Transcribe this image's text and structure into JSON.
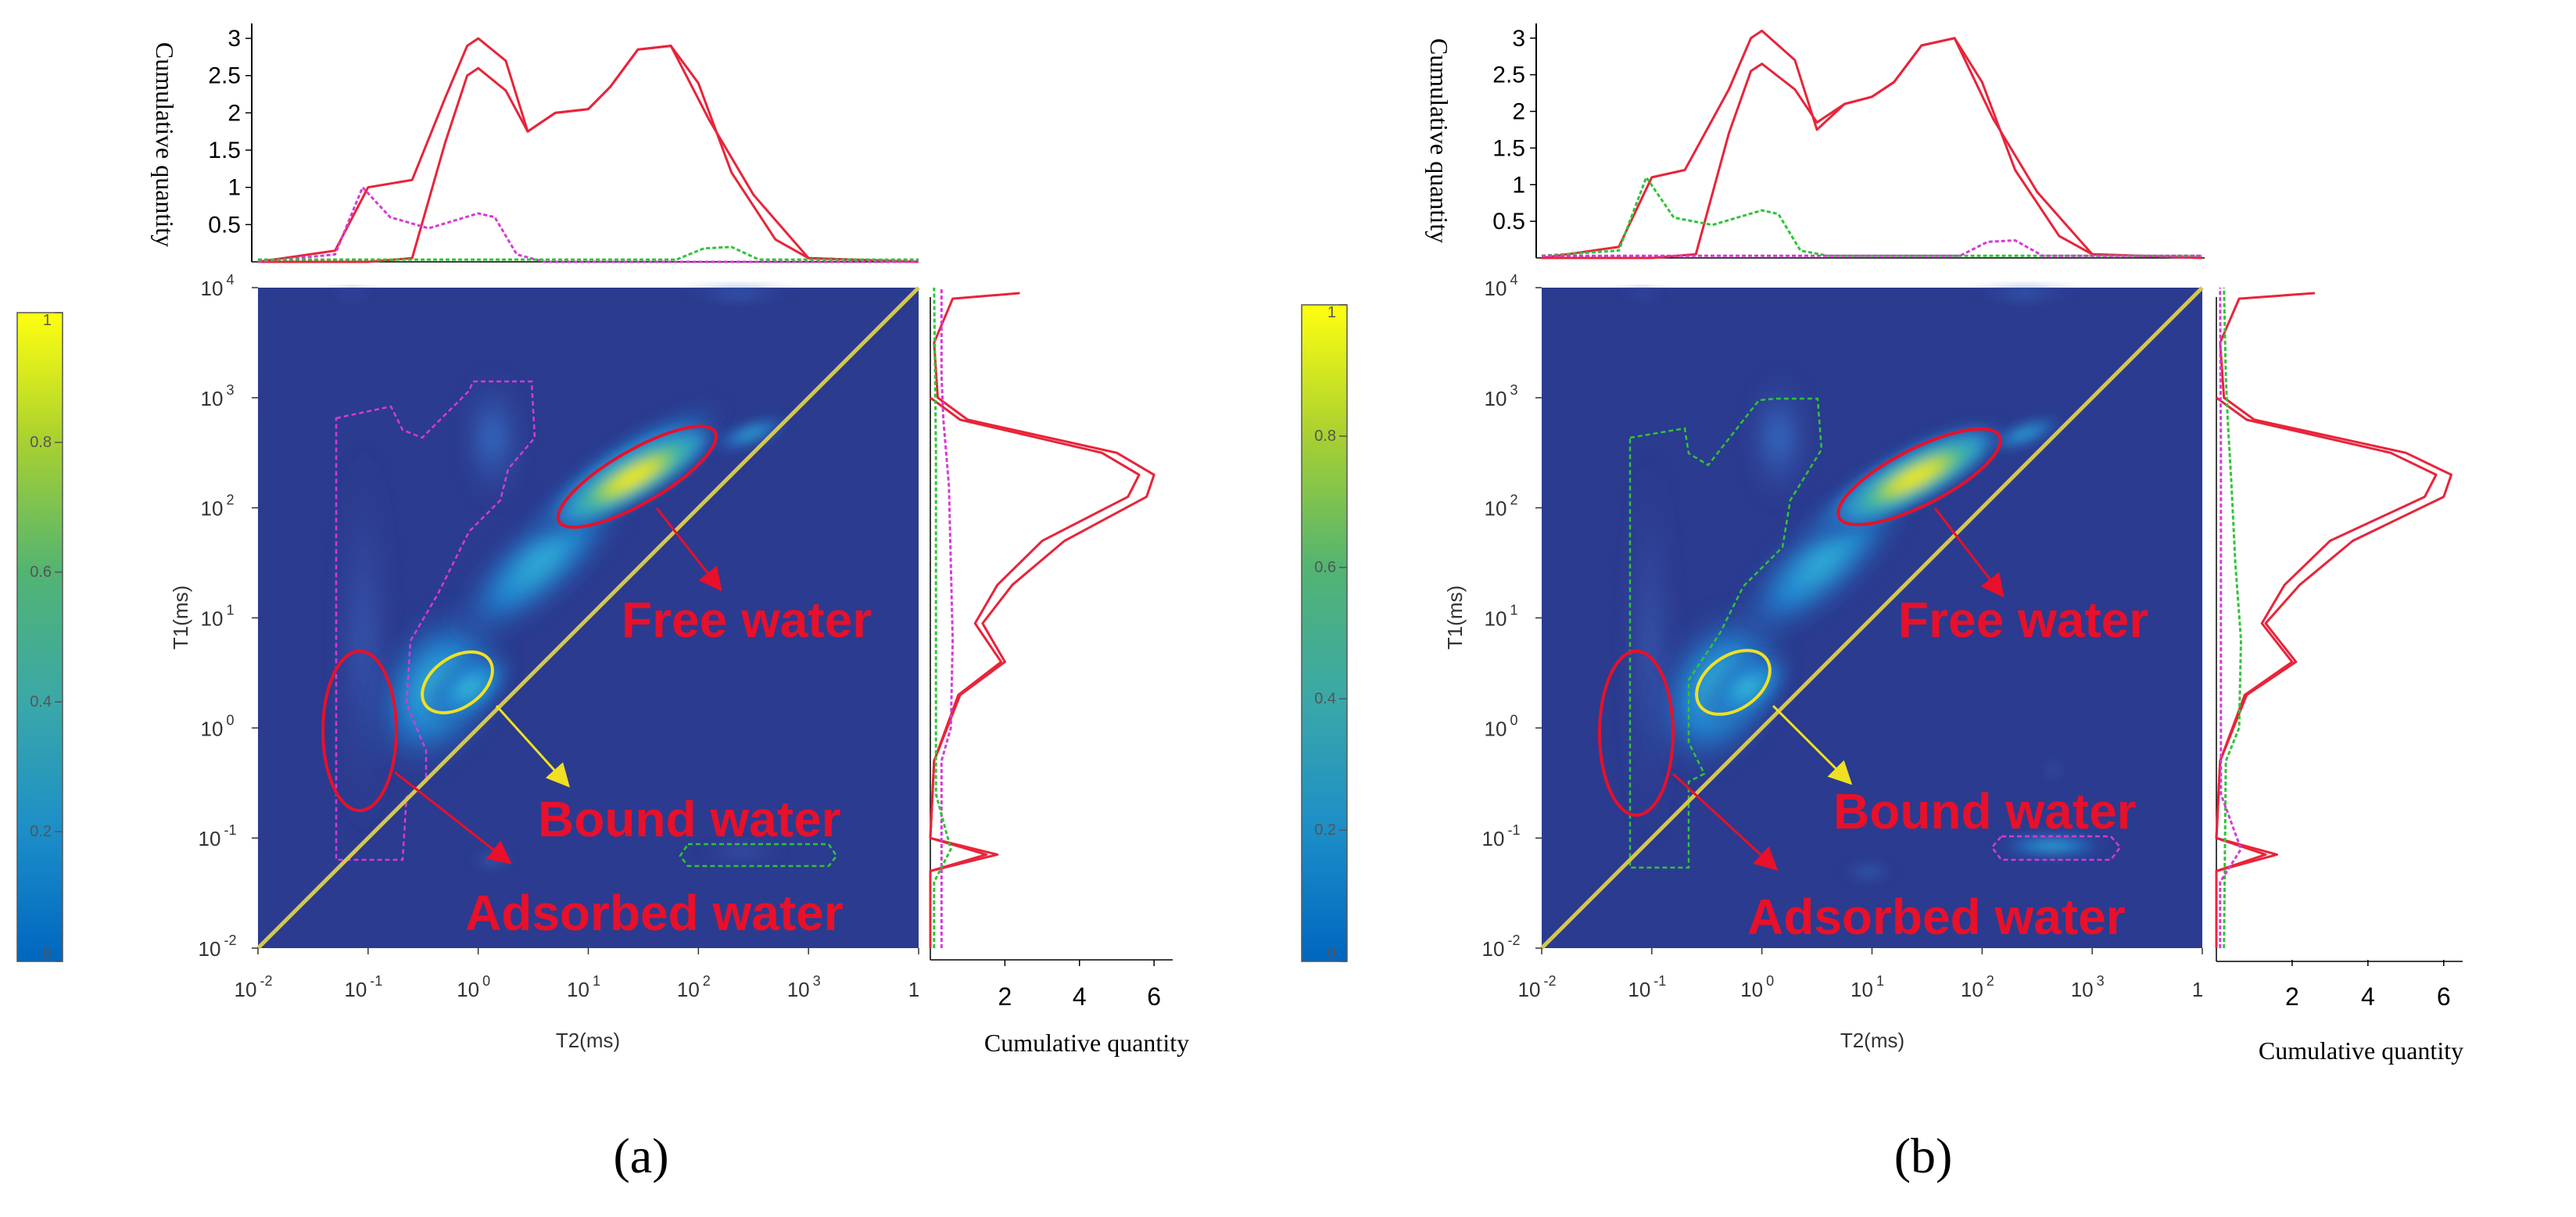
{
  "colors": {
    "map_bg": "#2b3b8f",
    "curve_red": "#e8243a",
    "curve_magenta": "#d63ad6",
    "curve_green": "#2fc437",
    "annot_red": "#e8102a",
    "annot_yellow": "#f0e024",
    "diagonal": "#d7c74a",
    "colorbar": [
      "#0066c0",
      "#1c8ec8",
      "#3aa8a8",
      "#52b472",
      "#8ec63a",
      "#d6df10",
      "#ffff00"
    ]
  },
  "chart_data": [
    {
      "type": "heatmap",
      "panel_label": "(a)",
      "xlabel": "T2(ms)",
      "ylabel": "T1(ms)",
      "x_log_range": [
        -2,
        4
      ],
      "y_log_range": [
        -2,
        4
      ],
      "x_ticks": [
        {
          "base": "10",
          "exp": "-2",
          "pos": -2
        },
        {
          "base": "10",
          "exp": "-1",
          "pos": -1
        },
        {
          "base": "10",
          "exp": "0",
          "pos": 0
        },
        {
          "base": "10",
          "exp": "1",
          "pos": 1
        },
        {
          "base": "10",
          "exp": "2",
          "pos": 2
        },
        {
          "base": "10",
          "exp": "3",
          "pos": 3
        },
        {
          "base": "1",
          "exp": "",
          "pos": 4
        }
      ],
      "y_ticks": [
        {
          "base": "10",
          "exp": "-2",
          "pos": -2
        },
        {
          "base": "10",
          "exp": "-1",
          "pos": -1
        },
        {
          "base": "10",
          "exp": "0",
          "pos": 0
        },
        {
          "base": "10",
          "exp": "1",
          "pos": 1
        },
        {
          "base": "10",
          "exp": "2",
          "pos": 2
        },
        {
          "base": "10",
          "exp": "3",
          "pos": 3
        },
        {
          "base": "10",
          "exp": "4",
          "pos": 4
        }
      ],
      "colorbar": {
        "range": [
          0,
          1
        ],
        "ticks": [
          "0",
          "0.2",
          "0.4",
          "0.6",
          "0.8",
          "1"
        ]
      },
      "top_projection": {
        "ylabel": "Cumulative quantity",
        "y_ticks": [
          "0.5",
          "1",
          "1.5",
          "2",
          "2.5",
          "3"
        ],
        "ylim": [
          0,
          3.2
        ],
        "series": [
          {
            "name": "red-outer",
            "color": "curve_red",
            "x": [
              -2,
              -1.3,
              -1.0,
              -0.6,
              -0.3,
              -0.1,
              0.0,
              0.25,
              0.45,
              0.7,
              1.0,
              1.2,
              1.45,
              1.75,
              2.0,
              2.3,
              2.7,
              3.0,
              4.0
            ],
            "values": [
              0,
              0.15,
              1.0,
              1.1,
              2.2,
              2.9,
              3.0,
              2.7,
              1.75,
              2.0,
              2.05,
              2.35,
              2.85,
              2.9,
              2.4,
              1.2,
              0.3,
              0.05,
              0
            ]
          },
          {
            "name": "red-inner",
            "color": "curve_red",
            "x": [
              -2,
              -1.0,
              -0.6,
              -0.3,
              -0.1,
              0.0,
              0.25,
              0.45,
              0.7,
              1.0,
              1.2,
              1.45,
              1.75,
              2.1,
              2.5,
              3.0,
              4.0
            ],
            "values": [
              0,
              0,
              0.05,
              1.6,
              2.5,
              2.6,
              2.3,
              1.75,
              2.0,
              2.05,
              2.35,
              2.85,
              2.9,
              1.9,
              0.9,
              0.05,
              0
            ]
          },
          {
            "name": "magenta",
            "color": "curve_magenta",
            "x": [
              -2,
              -1.3,
              -1.05,
              -0.8,
              -0.45,
              0.0,
              0.15,
              0.35,
              0.6,
              4.0
            ],
            "values": [
              0,
              0.1,
              1.0,
              0.6,
              0.45,
              0.65,
              0.6,
              0.1,
              0,
              0
            ]
          },
          {
            "name": "green",
            "color": "curve_green",
            "x": [
              -2,
              1.8,
              2.05,
              2.3,
              2.55,
              4.0
            ],
            "values": [
              0.03,
              0.03,
              0.18,
              0.2,
              0.03,
              0.03
            ]
          }
        ]
      },
      "right_projection": {
        "xlabel": "Cumulative quantity",
        "x_ticks": [
          "2",
          "4",
          "6"
        ],
        "xlim": [
          0,
          6.5
        ],
        "series": [
          {
            "name": "red-outer",
            "color": "curve_red",
            "y": [
              -2,
              -1.3,
              -1.15,
              -1.0,
              -0.3,
              0.3,
              0.6,
              0.95,
              1.3,
              1.7,
              2.1,
              2.3,
              2.5,
              2.8,
              3.0,
              3.5,
              3.9,
              3.95
            ],
            "values": [
              0,
              0,
              1.8,
              0,
              0.1,
              0.8,
              2.0,
              1.4,
              2.2,
              3.6,
              5.8,
              6.0,
              5.0,
              1.0,
              0.2,
              0.1,
              0.6,
              2.4
            ]
          },
          {
            "name": "red-inner",
            "color": "curve_red",
            "y": [
              -2,
              -1.3,
              -1.15,
              -1.0,
              -0.3,
              0.3,
              0.6,
              0.95,
              1.3,
              1.7,
              2.1,
              2.3,
              2.5,
              2.8,
              3.0
            ],
            "values": [
              0,
              0,
              1.5,
              0,
              0.1,
              0.75,
              1.9,
              1.2,
              1.8,
              3.0,
              5.3,
              5.6,
              4.6,
              0.8,
              0
            ]
          },
          {
            "name": "magenta",
            "color": "curve_magenta",
            "y": [
              -2,
              -0.3,
              0.0,
              0.8,
              1.5,
              2.2,
              2.8,
              3.2,
              4.0
            ],
            "values": [
              0.3,
              0.3,
              0.55,
              0.6,
              0.55,
              0.5,
              0.35,
              0.3,
              0.3
            ]
          },
          {
            "name": "green",
            "color": "curve_green",
            "y": [
              -2,
              -1.4,
              -1.1,
              -0.6,
              0.5,
              2.5,
              4.0
            ],
            "values": [
              0.1,
              0.1,
              0.55,
              0.15,
              0.15,
              0.15,
              0.1
            ]
          }
        ]
      },
      "annotations": [
        {
          "text": "Free water",
          "color": "annot_red"
        },
        {
          "text": "Bound water",
          "color": "annot_red"
        },
        {
          "text": "Adsorbed water",
          "color": "annot_red"
        }
      ]
    },
    {
      "type": "heatmap",
      "panel_label": "(b)",
      "xlabel": "T2(ms)",
      "ylabel": "T1(ms)",
      "x_log_range": [
        -2,
        4
      ],
      "y_log_range": [
        -2,
        4
      ],
      "x_ticks": [
        {
          "base": "10",
          "exp": "-2",
          "pos": -2
        },
        {
          "base": "10",
          "exp": "-1",
          "pos": -1
        },
        {
          "base": "10",
          "exp": "0",
          "pos": 0
        },
        {
          "base": "10",
          "exp": "1",
          "pos": 1
        },
        {
          "base": "10",
          "exp": "2",
          "pos": 2
        },
        {
          "base": "10",
          "exp": "3",
          "pos": 3
        },
        {
          "base": "1",
          "exp": "",
          "pos": 4
        }
      ],
      "y_ticks": [
        {
          "base": "10",
          "exp": "-2",
          "pos": -2
        },
        {
          "base": "10",
          "exp": "-1",
          "pos": -1
        },
        {
          "base": "10",
          "exp": "0",
          "pos": 0
        },
        {
          "base": "10",
          "exp": "1",
          "pos": 1
        },
        {
          "base": "10",
          "exp": "2",
          "pos": 2
        },
        {
          "base": "10",
          "exp": "3",
          "pos": 3
        },
        {
          "base": "10",
          "exp": "4",
          "pos": 4
        }
      ],
      "colorbar": {
        "range": [
          0,
          1
        ],
        "ticks": [
          "0",
          "0.2",
          "0.4",
          "0.6",
          "0.8",
          "1"
        ]
      },
      "top_projection": {
        "ylabel": "Cumulative quantity",
        "y_ticks": [
          "0.5",
          "1",
          "1.5",
          "2",
          "2.5",
          "3"
        ],
        "ylim": [
          0,
          3.2
        ],
        "series": [
          {
            "name": "red-outer",
            "color": "curve_red",
            "x": [
              -2,
              -1.3,
              -1.0,
              -0.7,
              -0.3,
              -0.1,
              0.0,
              0.3,
              0.5,
              0.75,
              1.0,
              1.2,
              1.45,
              1.75,
              2.0,
              2.3,
              2.7,
              3.0,
              4.0
            ],
            "values": [
              0,
              0.15,
              1.1,
              1.2,
              2.3,
              3.0,
              3.1,
              2.7,
              1.75,
              2.1,
              2.2,
              2.4,
              2.9,
              3.0,
              2.4,
              1.2,
              0.3,
              0.05,
              0
            ]
          },
          {
            "name": "red-inner",
            "color": "curve_red",
            "x": [
              -2,
              -1.0,
              -0.6,
              -0.3,
              -0.1,
              0.0,
              0.3,
              0.5,
              0.75,
              1.0,
              1.2,
              1.45,
              1.75,
              2.1,
              2.5,
              3.0,
              4.0
            ],
            "values": [
              0,
              0,
              0.05,
              1.7,
              2.55,
              2.65,
              2.3,
              1.85,
              2.1,
              2.2,
              2.4,
              2.9,
              3.0,
              1.9,
              0.9,
              0.05,
              0
            ]
          },
          {
            "name": "green",
            "color": "curve_green",
            "x": [
              -2,
              -1.3,
              -1.05,
              -0.8,
              -0.45,
              0.0,
              0.15,
              0.35,
              0.6,
              4.0
            ],
            "values": [
              0.03,
              0.1,
              1.1,
              0.55,
              0.45,
              0.65,
              0.6,
              0.1,
              0.03,
              0.03
            ]
          },
          {
            "name": "magenta",
            "color": "curve_magenta",
            "x": [
              -2,
              1.8,
              2.05,
              2.3,
              2.55,
              4.0
            ],
            "values": [
              0.03,
              0.03,
              0.22,
              0.24,
              0.03,
              0.03
            ]
          }
        ]
      },
      "right_projection": {
        "xlabel": "Cumulative quantity",
        "x_ticks": [
          "2",
          "4",
          "6"
        ],
        "xlim": [
          0,
          6.5
        ],
        "series": [
          {
            "name": "red-outer",
            "color": "curve_red",
            "y": [
              -2,
              -1.3,
              -1.15,
              -1.0,
              -0.3,
              0.3,
              0.6,
              0.95,
              1.3,
              1.7,
              2.1,
              2.3,
              2.5,
              2.8,
              3.0,
              3.5,
              3.9,
              3.95
            ],
            "values": [
              0,
              0,
              1.6,
              0,
              0.1,
              0.8,
              2.1,
              1.3,
              2.2,
              3.6,
              6.0,
              6.2,
              5.0,
              1.0,
              0.2,
              0.1,
              0.6,
              2.6
            ]
          },
          {
            "name": "red-inner",
            "color": "curve_red",
            "y": [
              -2,
              -1.3,
              -1.15,
              -1.0,
              -0.3,
              0.3,
              0.6,
              0.95,
              1.3,
              1.7,
              2.1,
              2.3,
              2.5,
              2.8,
              3.0
            ],
            "values": [
              0,
              0,
              1.3,
              0,
              0.1,
              0.75,
              2.0,
              1.2,
              1.8,
              3.0,
              5.5,
              5.8,
              4.6,
              0.8,
              0
            ]
          },
          {
            "name": "green",
            "color": "curve_green",
            "y": [
              -2,
              -0.3,
              0.0,
              0.8,
              1.5,
              2.2,
              2.8,
              3.2,
              4.0
            ],
            "values": [
              0.2,
              0.25,
              0.6,
              0.65,
              0.5,
              0.4,
              0.3,
              0.25,
              0.2
            ]
          },
          {
            "name": "magenta",
            "color": "curve_magenta",
            "y": [
              -2,
              -1.4,
              -1.1,
              -0.6,
              0.5,
              2.5,
              4.0
            ],
            "values": [
              0.1,
              0.1,
              0.65,
              0.12,
              0.12,
              0.12,
              0.1
            ]
          }
        ]
      },
      "annotations": [
        {
          "text": "Free water",
          "color": "annot_red"
        },
        {
          "text": "Bound water",
          "color": "annot_red"
        },
        {
          "text": "Adsorbed water",
          "color": "annot_red"
        }
      ]
    }
  ]
}
